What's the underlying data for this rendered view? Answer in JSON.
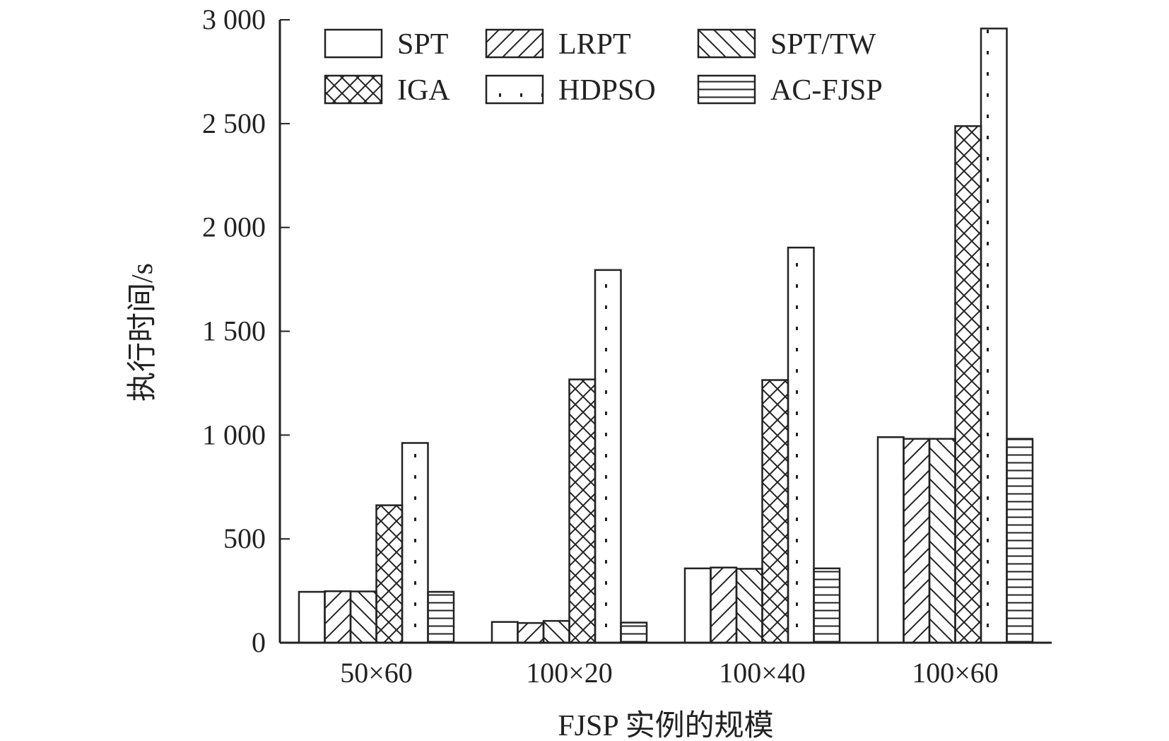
{
  "chart_data": {
    "type": "bar",
    "categories": [
      "50×60",
      "100×20",
      "100×40",
      "100×60"
    ],
    "series": [
      {
        "name": "SPT",
        "pattern": "plain",
        "values": [
          245,
          100,
          358,
          990
        ]
      },
      {
        "name": "LRPT",
        "pattern": "diag-right",
        "values": [
          248,
          95,
          362,
          982
        ]
      },
      {
        "name": "SPT/TW",
        "pattern": "diag-left",
        "values": [
          247,
          105,
          356,
          982
        ]
      },
      {
        "name": "IGA",
        "pattern": "crosshatch",
        "values": [
          662,
          1268,
          1265,
          2488
        ]
      },
      {
        "name": "HDPSO",
        "pattern": "dots",
        "values": [
          962,
          1795,
          1903,
          2958
        ]
      },
      {
        "name": "AC-FJSP",
        "pattern": "horizontal",
        "values": [
          245,
          97,
          358,
          982
        ]
      }
    ],
    "xlabel": "FJSP 实例的规模",
    "ylabel": "执行时间/s",
    "ylim": [
      0,
      3000
    ],
    "yticks": [
      0,
      500,
      1000,
      1500,
      2000,
      2500,
      3000
    ],
    "ytick_labels": [
      "0",
      "500",
      "1 000",
      "1 500",
      "2 000",
      "2 500",
      "3 000"
    ],
    "legend_position": "top",
    "grid": false,
    "colors": {
      "stroke": "#222222",
      "fill": "#ffffff"
    }
  }
}
